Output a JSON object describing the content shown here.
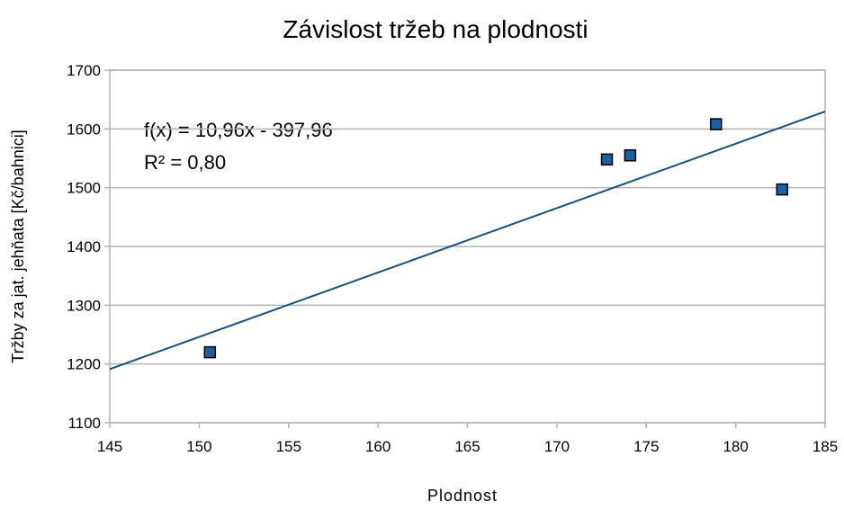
{
  "chart_data": {
    "type": "scatter",
    "title": "Závislost tržeb na plodnosti",
    "x_label": "Plodnost",
    "y_label": "Tržby za jat. jehňata [Kč/bahnici]",
    "x": [
      150.6,
      172.8,
      174.1,
      178.9,
      182.6
    ],
    "values": [
      1220,
      1548,
      1555,
      1608,
      1497
    ],
    "color": "#1f5fa0",
    "trendline": {
      "slope": 10.96,
      "intercept": -397.96,
      "label": "f(x) = 10,96x - 397,96",
      "color": "#1a4f80"
    },
    "r2_label": "R² = 0,80",
    "xlim": [
      145,
      185
    ],
    "xticks": [
      145,
      150,
      155,
      160,
      165,
      170,
      175,
      180,
      185
    ],
    "ylim": [
      1100,
      1700
    ],
    "yticks": [
      1100,
      1200,
      1300,
      1400,
      1500,
      1600,
      1700
    ],
    "grid": true
  }
}
